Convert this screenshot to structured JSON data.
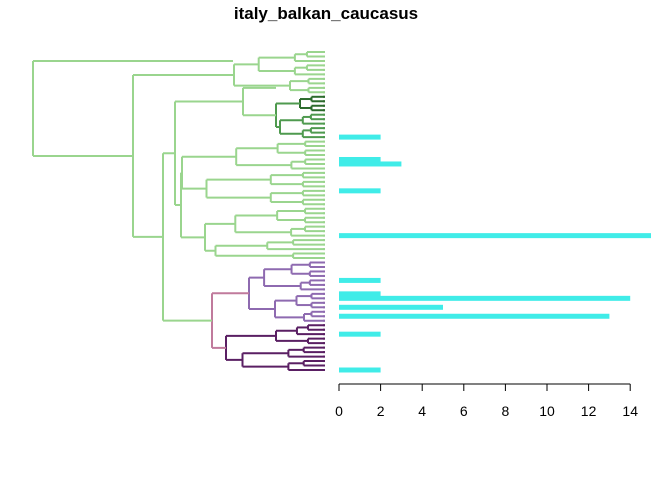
{
  "chart_data": [
    {
      "type": "dendrogram",
      "title": "italy_balkan_caucasus",
      "clusters": [
        {
          "name": "",
          "color": "#9ad58e"
        },
        {
          "name": "",
          "color": "#2c6b2c"
        },
        {
          "name": "",
          "color": "#4f9a4f"
        },
        {
          "name": "",
          "color": "#8e6ab0"
        },
        {
          "name": "",
          "color": "#c07a9c"
        },
        {
          "name": "",
          "color": "#5a1f63"
        }
      ]
    },
    {
      "type": "bar",
      "orientation": "horizontal",
      "color": "#40ece8",
      "xlim": [
        0,
        15
      ],
      "x_ticks": [
        0,
        2,
        4,
        6,
        8,
        10,
        12,
        14
      ],
      "xlabel": "",
      "ylabel": "",
      "values": [
        0,
        0,
        0,
        0,
        0,
        0,
        0,
        0,
        0,
        0,
        0,
        0,
        0,
        0,
        0,
        0,
        0,
        0,
        0,
        2,
        0,
        0,
        0,
        0,
        2,
        3,
        0,
        0,
        0,
        0,
        0,
        2,
        0,
        0,
        0,
        0,
        0,
        0,
        0,
        0,
        0,
        15,
        0,
        0,
        0,
        0,
        0,
        0,
        0,
        0,
        0,
        2,
        0,
        0,
        2,
        14,
        0,
        5,
        0,
        13,
        0,
        0,
        0,
        2,
        0,
        0,
        0,
        0,
        0,
        0,
        0,
        2
      ]
    }
  ]
}
